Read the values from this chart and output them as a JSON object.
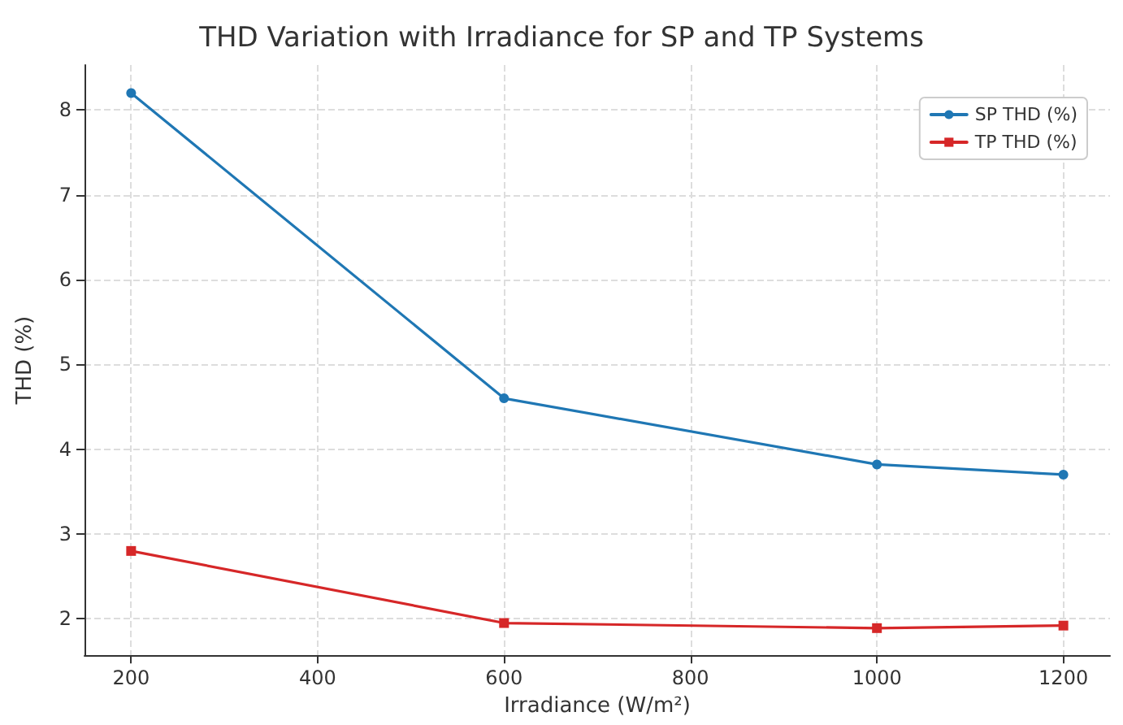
{
  "chart_data": {
    "type": "line",
    "title": "THD Variation with Irradiance for SP and TP Systems",
    "xlabel": "Irradiance (W/m²)",
    "ylabel": "THD (%)",
    "x": [
      200,
      600,
      1000,
      1200
    ],
    "series": [
      {
        "name": "SP THD (%)",
        "color": "#1f77b4",
        "marker": "circle",
        "values": [
          8.2,
          4.6,
          3.82,
          3.7
        ]
      },
      {
        "name": "TP THD (%)",
        "color": "#d62728",
        "marker": "square",
        "values": [
          2.8,
          1.95,
          1.89,
          1.92
        ]
      }
    ],
    "xlim": [
      150,
      1250
    ],
    "xticks": [
      200,
      400,
      600,
      800,
      1000,
      1200
    ],
    "ylim": [
      1.57,
      8.53
    ],
    "yticks": [
      2,
      3,
      4,
      5,
      6,
      7,
      8
    ],
    "grid": true,
    "legend": "top right",
    "line_style": "solid"
  }
}
